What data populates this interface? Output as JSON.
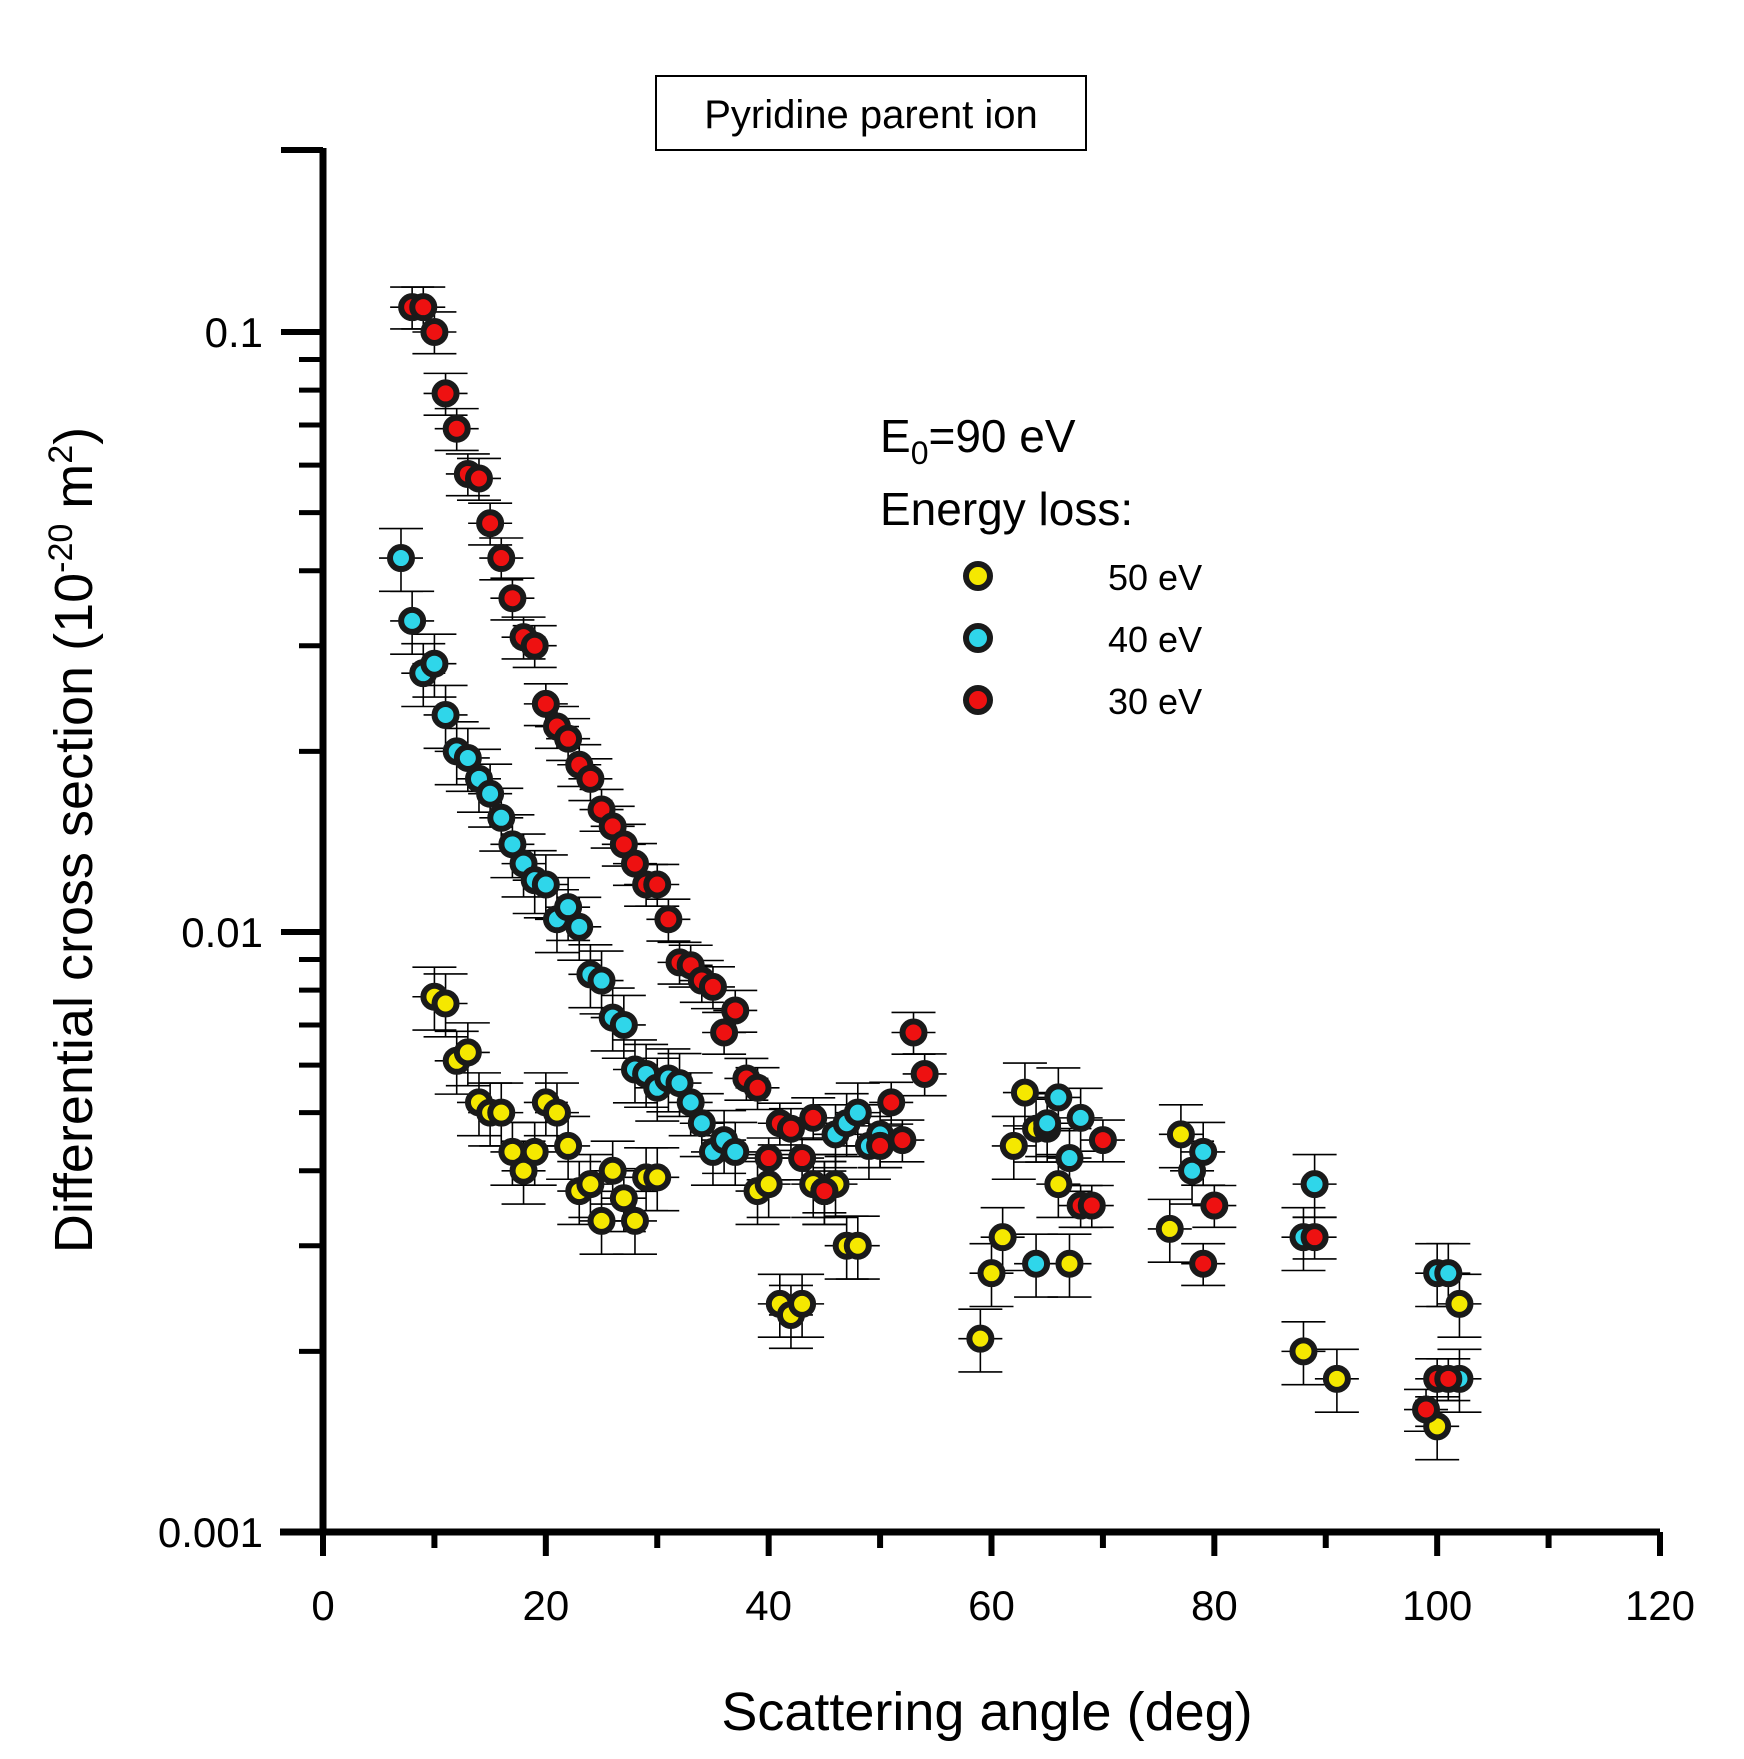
{
  "chart_data": {
    "type": "scatter",
    "title": "Pyridine parent ion",
    "xlabel": "Scattering angle (deg)",
    "ylabel_parts": [
      "Differential cross section (10",
      "-20",
      " m",
      "2",
      ")"
    ],
    "xlim": [
      0,
      120
    ],
    "ylim": [
      0.001,
      0.2
    ],
    "yscale": "log",
    "x_ticks": [
      0,
      20,
      40,
      60,
      80,
      100,
      120
    ],
    "x_tick_labels": [
      "0",
      "20",
      "40",
      "60",
      "80",
      "100",
      "120"
    ],
    "y_ticks": [
      0.001,
      0.01,
      0.1
    ],
    "y_tick_labels": [
      "0.001",
      "0.01",
      "0.1"
    ],
    "annotation": {
      "e0_main": "E",
      "e0_sub": "0",
      "e0_rest": "=90 eV",
      "energy_loss_label": "Energy loss:"
    },
    "series": [
      {
        "name": "50 eV",
        "color": "#f5e800",
        "x": [
          10,
          11,
          12,
          13,
          14,
          15,
          16,
          17,
          18,
          19,
          20,
          21,
          22,
          23,
          24,
          25,
          26,
          27,
          28,
          29,
          30,
          39,
          40,
          41,
          42,
          43,
          44,
          45,
          46,
          47,
          48,
          59,
          60,
          61,
          62,
          63,
          64,
          65,
          66,
          67,
          76,
          77,
          88,
          91,
          100,
          102
        ],
        "y": [
          0.0078,
          0.0076,
          0.0061,
          0.0063,
          0.0052,
          0.005,
          0.005,
          0.0043,
          0.004,
          0.0043,
          0.0052,
          0.005,
          0.0044,
          0.0037,
          0.0038,
          0.0033,
          0.004,
          0.0036,
          0.0033,
          0.0039,
          0.0039,
          0.0037,
          0.0038,
          0.0024,
          0.0023,
          0.0024,
          0.0038,
          0.0037,
          0.0038,
          0.003,
          0.003,
          0.0021,
          0.0027,
          0.0031,
          0.0044,
          0.0054,
          0.0047,
          0.0047,
          0.0038,
          0.0028,
          0.0032,
          0.0046,
          0.002,
          0.0018,
          0.0015,
          0.0024
        ],
        "err_rel": 0.12
      },
      {
        "name": "40 eV",
        "color": "#2fd6ea",
        "x": [
          7,
          8,
          9,
          10,
          11,
          12,
          13,
          14,
          15,
          16,
          17,
          18,
          19,
          20,
          21,
          22,
          23,
          24,
          25,
          26,
          27,
          28,
          29,
          30,
          31,
          32,
          33,
          34,
          35,
          36,
          37,
          45,
          46,
          47,
          48,
          49,
          50,
          64,
          65,
          66,
          67,
          68,
          78,
          79,
          88,
          89,
          100,
          101,
          102
        ],
        "y": [
          0.042,
          0.033,
          0.027,
          0.028,
          0.023,
          0.02,
          0.0195,
          0.018,
          0.017,
          0.0155,
          0.014,
          0.013,
          0.0122,
          0.012,
          0.0105,
          0.011,
          0.0102,
          0.0085,
          0.0083,
          0.0072,
          0.007,
          0.0059,
          0.0058,
          0.0055,
          0.0057,
          0.0056,
          0.0052,
          0.0048,
          0.0043,
          0.0045,
          0.0043,
          0.0037,
          0.0046,
          0.0048,
          0.005,
          0.0044,
          0.0046,
          0.0028,
          0.0048,
          0.0053,
          0.0042,
          0.0049,
          0.004,
          0.0043,
          0.0031,
          0.0038,
          0.0027,
          0.0027,
          0.0018
        ],
        "err_rel": 0.12
      },
      {
        "name": "30 eV",
        "color": "#ee1111",
        "x": [
          8,
          9,
          10,
          11,
          12,
          13,
          14,
          15,
          16,
          17,
          18,
          19,
          20,
          21,
          22,
          23,
          24,
          25,
          26,
          27,
          28,
          29,
          30,
          31,
          32,
          33,
          34,
          35,
          36,
          37,
          38,
          39,
          40,
          41,
          42,
          43,
          44,
          45,
          50,
          51,
          52,
          53,
          54,
          68,
          69,
          70,
          79,
          80,
          89,
          99,
          100,
          101
        ],
        "y": [
          0.11,
          0.11,
          0.1,
          0.079,
          0.069,
          0.058,
          0.057,
          0.048,
          0.042,
          0.036,
          0.031,
          0.03,
          0.024,
          0.022,
          0.021,
          0.019,
          0.018,
          0.016,
          0.015,
          0.014,
          0.013,
          0.012,
          0.012,
          0.0105,
          0.0089,
          0.0088,
          0.0083,
          0.0081,
          0.0068,
          0.0074,
          0.0057,
          0.0055,
          0.0042,
          0.0048,
          0.0047,
          0.0042,
          0.0049,
          0.0037,
          0.0044,
          0.0052,
          0.0045,
          0.0068,
          0.0058,
          0.0035,
          0.0035,
          0.0045,
          0.0028,
          0.0035,
          0.0031,
          0.0016,
          0.0018,
          0.0018
        ],
        "err_rel": 0.08
      }
    ]
  }
}
